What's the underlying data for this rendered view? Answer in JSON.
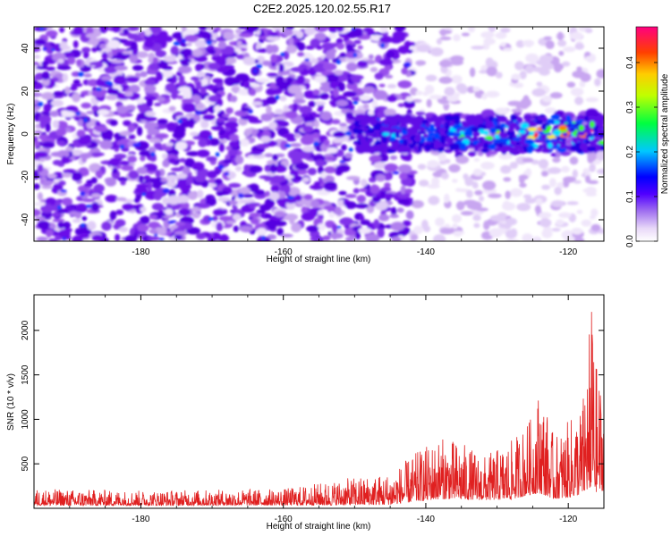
{
  "title": "C2E2.2025.120.02.55.R17",
  "chart_data": [
    {
      "type": "heatmap",
      "xlabel": "Height of straight line (km)",
      "ylabel": "Frequency (Hz)",
      "xlim": [
        -195,
        -115
      ],
      "ylim": [
        -50,
        50
      ],
      "x_ticks": [
        -180,
        -160,
        -140,
        -120
      ],
      "y_ticks": [
        -40,
        -20,
        0,
        20,
        40
      ],
      "colorbar": {
        "label": "Normalized spectral amplitude",
        "range": [
          0.0,
          0.48
        ],
        "ticks": [
          0.0,
          0.1,
          0.2,
          0.3,
          0.4
        ],
        "colors": [
          "#ffffff",
          "#c9a6f0",
          "#7a1ae6",
          "#0000ff",
          "#00e5ff",
          "#00ff00",
          "#ffff00",
          "#ff8000",
          "#ff0000",
          "#ff0080"
        ]
      },
      "band": {
        "frequency_hz": 0,
        "half_width_hz": 8,
        "x_start_km": -150,
        "x_end_km": -115,
        "peak_amplitude": 0.45
      },
      "noise_quiet_region_km": [
        -142,
        -115
      ],
      "grid": false
    },
    {
      "type": "line",
      "xlabel": "Height of straight line (km)",
      "ylabel": "SNR (10 * v/v)",
      "xlim": [
        -195,
        -115
      ],
      "ylim": [
        0,
        2400
      ],
      "x_ticks": [
        -180,
        -160,
        -140,
        -120
      ],
      "y_ticks": [
        500,
        1000,
        1500,
        2000
      ],
      "series": [
        {
          "color": "#e02020",
          "envelope": {
            "x": [
              -195,
              -180,
              -160,
              -150,
              -145,
              -141,
              -138,
              -135,
              -132,
              -128,
              -125,
              -124,
              -122,
              -120,
              -118,
              -116.8,
              -116.3,
              -115
            ],
            "baseline": [
              80,
              80,
              85,
              90,
              100,
              200,
              260,
              250,
              230,
              250,
              400,
              420,
              260,
              300,
              400,
              600,
              450,
              500
            ],
            "peak": [
              220,
              200,
              220,
              350,
              400,
              650,
              800,
              750,
              580,
              760,
              1050,
              1400,
              800,
              980,
              1200,
              2380,
              1700,
              1300
            ]
          }
        }
      ],
      "grid": false
    }
  ]
}
